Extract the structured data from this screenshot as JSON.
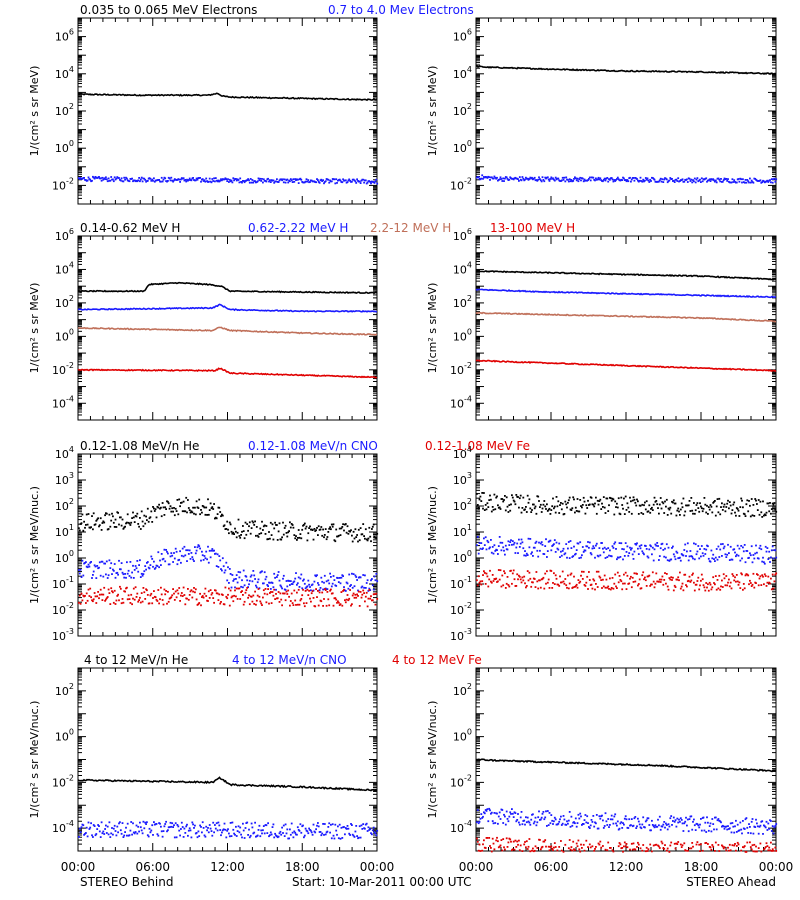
{
  "figure": {
    "bottom_left": "STEREO Behind",
    "bottom_center": "Start: 10-Mar-2011 00:00 UTC",
    "bottom_right": "STEREO Ahead",
    "x_tick_labels": [
      "00:00",
      "06:00",
      "12:00",
      "18:00",
      "00:00"
    ]
  },
  "chart_data": [
    {
      "type": "line",
      "panel": "electrons",
      "ylabel": "1/(cm² s sr MeV)",
      "ylim_log10": [
        -3,
        7
      ],
      "y_tick_exponents": [
        -2,
        0,
        2,
        4,
        6
      ],
      "log_scale": true,
      "series_labels": [
        {
          "text": "0.035 to 0.065 MeV Electrons",
          "color": "#000000"
        },
        {
          "text": "0.7 to 4.0 Mev Electrons",
          "color": "#1a1aff"
        }
      ],
      "behind": {
        "series": [
          {
            "name": "0.035 to 0.065 MeV Electrons",
            "color": "#000000",
            "style": "line",
            "x_hours": [
              0,
              5,
              10.5,
              11.2,
              11.6,
              12.2,
              16,
              24
            ],
            "log10_y": [
              2.9,
              2.85,
              2.85,
              2.95,
              2.8,
              2.75,
              2.7,
              2.6
            ]
          },
          {
            "name": "0.7 to 4.0 Mev Electrons",
            "color": "#1a1aff",
            "style": "dots",
            "x_hours": [
              0,
              24
            ],
            "log10_y": [
              -1.6,
              -1.75
            ]
          }
        ]
      },
      "ahead": {
        "series": [
          {
            "name": "0.035 to 0.065 MeV Electrons",
            "color": "#000000",
            "style": "line",
            "x_hours": [
              0,
              1,
              6,
              12,
              18,
              24
            ],
            "log10_y": [
              4.4,
              4.35,
              4.25,
              4.15,
              4.1,
              4.0
            ]
          },
          {
            "name": "0.7 to 4.0 Mev Electrons",
            "color": "#1a1aff",
            "style": "dots",
            "x_hours": [
              0,
              2,
              24
            ],
            "log10_y": [
              -1.5,
              -1.6,
              -1.7
            ]
          }
        ]
      }
    },
    {
      "type": "line",
      "panel": "protons",
      "ylabel": "1/(cm² s sr MeV)",
      "ylim_log10": [
        -5,
        6
      ],
      "y_tick_exponents": [
        -4,
        -2,
        0,
        2,
        4,
        6
      ],
      "log_scale": true,
      "series_labels": [
        {
          "text": "0.14-0.62 MeV H",
          "color": "#000000"
        },
        {
          "text": "0.62-2.22 MeV H",
          "color": "#1a1aff"
        },
        {
          "text": "2.2-12 MeV H",
          "color": "#c0705a"
        },
        {
          "text": "13-100 MeV H",
          "color": "#e00000"
        }
      ],
      "behind": {
        "series": [
          {
            "name": "0.14-0.62 MeV H",
            "color": "#000000",
            "style": "line",
            "x_hours": [
              0,
              5.3,
              5.7,
              8,
              10.5,
              11.5,
              12.2,
              18,
              24
            ],
            "log10_y": [
              2.7,
              2.7,
              3.1,
              3.2,
              3.1,
              3.0,
              2.7,
              2.65,
              2.6
            ]
          },
          {
            "name": "0.62-2.22 MeV H",
            "color": "#1a1aff",
            "style": "line",
            "x_hours": [
              0,
              10.8,
              11.4,
              12.2,
              18,
              24
            ],
            "log10_y": [
              1.6,
              1.7,
              1.9,
              1.6,
              1.5,
              1.5
            ]
          },
          {
            "name": "2.2-12 MeV H",
            "color": "#c0705a",
            "style": "line",
            "x_hours": [
              0,
              10.8,
              11.4,
              12.2,
              18,
              24
            ],
            "log10_y": [
              0.5,
              0.35,
              0.55,
              0.35,
              0.2,
              0.1
            ]
          },
          {
            "name": "13-100 MeV H",
            "color": "#e00000",
            "style": "line",
            "x_hours": [
              0,
              11,
              11.4,
              12.2,
              24
            ],
            "log10_y": [
              -2.0,
              -2.05,
              -1.9,
              -2.2,
              -2.45
            ]
          }
        ]
      },
      "ahead": {
        "series": [
          {
            "name": "0.14-0.62 MeV H",
            "color": "#000000",
            "style": "line",
            "x_hours": [
              0,
              6,
              12,
              18,
              24
            ],
            "log10_y": [
              3.9,
              3.8,
              3.7,
              3.6,
              3.4
            ]
          },
          {
            "name": "0.62-2.22 MeV H",
            "color": "#1a1aff",
            "style": "line",
            "x_hours": [
              0,
              6,
              12,
              18,
              24
            ],
            "log10_y": [
              2.8,
              2.65,
              2.55,
              2.45,
              2.35
            ]
          },
          {
            "name": "2.2-12 MeV H",
            "color": "#c0705a",
            "style": "line",
            "x_hours": [
              0,
              6,
              12,
              18,
              24
            ],
            "log10_y": [
              1.4,
              1.3,
              1.2,
              1.1,
              0.9
            ]
          },
          {
            "name": "13-100 MeV H",
            "color": "#e00000",
            "style": "line",
            "x_hours": [
              0,
              6,
              12,
              18,
              24
            ],
            "log10_y": [
              -1.45,
              -1.6,
              -1.75,
              -1.9,
              -2.05
            ]
          }
        ]
      }
    },
    {
      "type": "scatter",
      "panel": "low-energy ions",
      "ylabel": "1/(cm² s sr MeV/nuc.)",
      "ylim_log10": [
        -3,
        4
      ],
      "y_tick_exponents": [
        -3,
        -2,
        -1,
        0,
        1,
        2,
        3,
        4
      ],
      "log_scale": true,
      "series_labels": [
        {
          "text": "0.12-1.08 MeV/n He",
          "color": "#000000"
        },
        {
          "text": "0.12-1.08 MeV/n CNO",
          "color": "#1a1aff"
        },
        {
          "text": "0.12-1.08 MeV Fe",
          "color": "#e00000"
        }
      ],
      "behind": {
        "series": [
          {
            "name": "0.12-1.08 MeV/n He",
            "color": "#000000",
            "style": "dots",
            "x_hours": [
              0,
              5,
              5.5,
              7,
              9,
              10.5,
              11.5,
              12.2,
              14,
              18,
              24
            ],
            "log10_y": [
              1.4,
              1.5,
              1.65,
              2.0,
              2.05,
              1.95,
              1.6,
              1.2,
              1.1,
              1.05,
              1.0
            ]
          },
          {
            "name": "0.12-1.08 MeV/n CNO",
            "color": "#1a1aff",
            "style": "dots",
            "x_hours": [
              0,
              5,
              6,
              8,
              10.5,
              11.5,
              12.2,
              16,
              24
            ],
            "log10_y": [
              -0.4,
              -0.4,
              -0.1,
              0.15,
              0.2,
              -0.2,
              -0.75,
              -0.85,
              -0.9
            ]
          },
          {
            "name": "0.12-1.08 MeV Fe",
            "color": "#e00000",
            "style": "dots",
            "x_hours": [
              0,
              24
            ],
            "log10_y": [
              -1.4,
              -1.5
            ]
          }
        ]
      },
      "ahead": {
        "series": [
          {
            "name": "0.12-1.08 MeV/n He",
            "color": "#000000",
            "style": "dots",
            "x_hours": [
              0,
              6,
              12,
              18,
              24
            ],
            "log10_y": [
              2.2,
              2.05,
              2.05,
              2.0,
              1.95
            ]
          },
          {
            "name": "0.12-1.08 MeV/n CNO",
            "color": "#1a1aff",
            "style": "dots",
            "x_hours": [
              0,
              6,
              12,
              18,
              24
            ],
            "log10_y": [
              0.55,
              0.4,
              0.3,
              0.25,
              0.15
            ]
          },
          {
            "name": "0.12-1.08 MeV Fe",
            "color": "#e00000",
            "style": "dots",
            "x_hours": [
              0,
              12,
              24
            ],
            "log10_y": [
              -0.75,
              -0.85,
              -0.9
            ]
          }
        ]
      }
    },
    {
      "type": "scatter",
      "panel": "high-energy ions",
      "ylabel": "1/(cm² s sr MeV/nuc.)",
      "ylim_log10": [
        -5,
        3
      ],
      "y_tick_exponents": [
        -4,
        -2,
        0,
        2
      ],
      "log_scale": true,
      "series_labels": [
        {
          "text": "4 to 12 MeV/n He",
          "color": "#000000"
        },
        {
          "text": "4 to 12 MeV/n CNO",
          "color": "#1a1aff"
        },
        {
          "text": "4 to 12 MeV Fe",
          "color": "#e00000"
        }
      ],
      "behind": {
        "series": [
          {
            "name": "4 to 12 MeV/n He",
            "color": "#000000",
            "style": "line",
            "x_hours": [
              0,
              10.8,
              11.4,
              12.2,
              18,
              24
            ],
            "log10_y": [
              -1.9,
              -2.0,
              -1.8,
              -2.1,
              -2.2,
              -2.35
            ]
          },
          {
            "name": "4 to 12 MeV/n CNO",
            "color": "#1a1aff",
            "style": "dots",
            "x_hours": [
              0,
              24
            ],
            "log10_y": [
              -4.0,
              -4.1
            ]
          }
        ]
      },
      "ahead": {
        "series": [
          {
            "name": "4 to 12 MeV/n He",
            "color": "#000000",
            "style": "line",
            "x_hours": [
              0,
              2,
              8,
              14,
              20,
              24
            ],
            "log10_y": [
              -1.0,
              -1.05,
              -1.15,
              -1.25,
              -1.4,
              -1.5
            ]
          },
          {
            "name": "4 to 12 MeV/n CNO",
            "color": "#1a1aff",
            "style": "dots",
            "x_hours": [
              0,
              12,
              24
            ],
            "log10_y": [
              -3.4,
              -3.7,
              -3.9
            ]
          },
          {
            "name": "4 to 12 MeV Fe",
            "color": "#e00000",
            "style": "dots",
            "x_hours": [
              0,
              12,
              24
            ],
            "log10_y": [
              -4.7,
              -4.9,
              -4.9
            ]
          }
        ]
      }
    }
  ]
}
